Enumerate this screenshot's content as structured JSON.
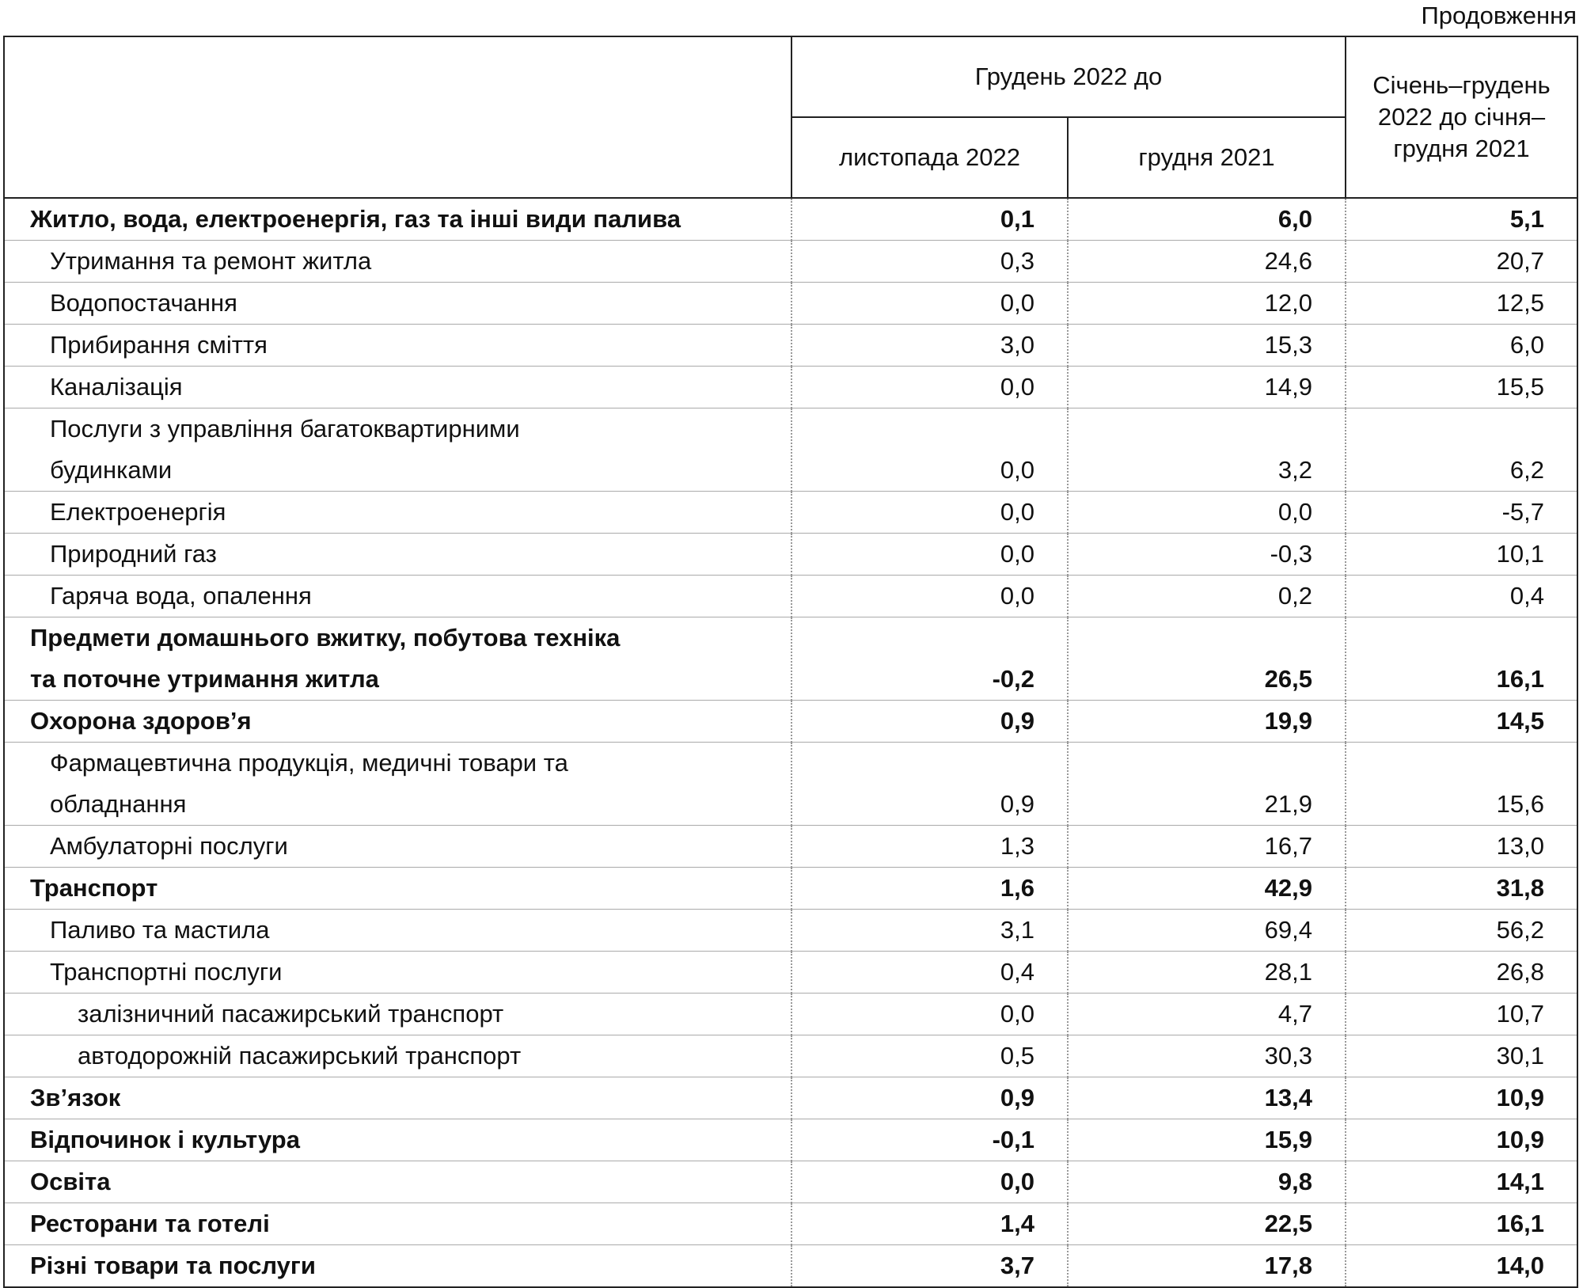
{
  "continuation_label": "Продовження",
  "header": {
    "group": "Грудень 2022 до",
    "col1": "листопада 2022",
    "col2": "грудня 2021",
    "col3": "Січень–грудень 2022 до січня–грудня 2021"
  },
  "rows": [
    {
      "label": "Житло, вода, електроенергія, газ та інші види палива",
      "level": 0,
      "bold": true,
      "v1": "0,1",
      "v2": "6,0",
      "v3": "5,1"
    },
    {
      "label": "Утримання та ремонт житла",
      "level": 1,
      "bold": false,
      "v1": "0,3",
      "v2": "24,6",
      "v3": "20,7"
    },
    {
      "label": "Водопостачання",
      "level": 1,
      "bold": false,
      "v1": "0,0",
      "v2": "12,0",
      "v3": "12,5"
    },
    {
      "label": "Прибирання сміття",
      "level": 1,
      "bold": false,
      "v1": "3,0",
      "v2": "15,3",
      "v3": "6,0"
    },
    {
      "label": "Каналізація",
      "level": 1,
      "bold": false,
      "v1": "0,0",
      "v2": "14,9",
      "v3": "15,5"
    },
    {
      "label": "Послуги з управління багатоквартирними будинками",
      "level": 1,
      "bold": false,
      "multi": true,
      "v1": "0,0",
      "v2": "3,2",
      "v3": "6,2"
    },
    {
      "label": "Електроенергія",
      "level": 1,
      "bold": false,
      "v1": "0,0",
      "v2": "0,0",
      "v3": "-5,7"
    },
    {
      "label": "Природний газ",
      "level": 1,
      "bold": false,
      "v1": "0,0",
      "v2": "-0,3",
      "v3": "10,1"
    },
    {
      "label": "Гаряча вода, опалення",
      "level": 1,
      "bold": false,
      "v1": "0,0",
      "v2": "0,2",
      "v3": "0,4"
    },
    {
      "label": "Предмети домашнього вжитку, побутова техніка та поточне утримання житла",
      "level": 0,
      "bold": true,
      "multi": true,
      "v1": "-0,2",
      "v2": "26,5",
      "v3": "16,1"
    },
    {
      "label": "Охорона здоров’я",
      "level": 0,
      "bold": true,
      "v1": "0,9",
      "v2": "19,9",
      "v3": "14,5"
    },
    {
      "label": "Фармацевтична продукція, медичні товари та обладнання",
      "level": 1,
      "bold": false,
      "multi": true,
      "v1": "0,9",
      "v2": "21,9",
      "v3": "15,6"
    },
    {
      "label": "Амбулаторні послуги",
      "level": 1,
      "bold": false,
      "v1": "1,3",
      "v2": "16,7",
      "v3": "13,0"
    },
    {
      "label": "Транспорт",
      "level": 0,
      "bold": true,
      "v1": "1,6",
      "v2": "42,9",
      "v3": "31,8"
    },
    {
      "label": "Паливо та мастила",
      "level": 1,
      "bold": false,
      "v1": "3,1",
      "v2": "69,4",
      "v3": "56,2"
    },
    {
      "label": "Транспортні послуги",
      "level": 1,
      "bold": false,
      "v1": "0,4",
      "v2": "28,1",
      "v3": "26,8"
    },
    {
      "label": "залізничний пасажирський транспорт",
      "level": 2,
      "bold": false,
      "v1": "0,0",
      "v2": "4,7",
      "v3": "10,7"
    },
    {
      "label": "автодорожній пасажирський транспорт",
      "level": 2,
      "bold": false,
      "v1": "0,5",
      "v2": "30,3",
      "v3": "30,1"
    },
    {
      "label": "Зв’язок",
      "level": 0,
      "bold": true,
      "v1": "0,9",
      "v2": "13,4",
      "v3": "10,9"
    },
    {
      "label": "Відпочинок і культура",
      "level": 0,
      "bold": true,
      "v1": "-0,1",
      "v2": "15,9",
      "v3": "10,9"
    },
    {
      "label": "Освіта",
      "level": 0,
      "bold": true,
      "v1": "0,0",
      "v2": "9,8",
      "v3": "14,1"
    },
    {
      "label": "Ресторани та готелі",
      "level": 0,
      "bold": true,
      "v1": "1,4",
      "v2": "22,5",
      "v3": "16,1"
    },
    {
      "label": "Різні товари та послуги",
      "level": 0,
      "bold": true,
      "v1": "3,7",
      "v2": "17,8",
      "v3": "14,0"
    }
  ]
}
